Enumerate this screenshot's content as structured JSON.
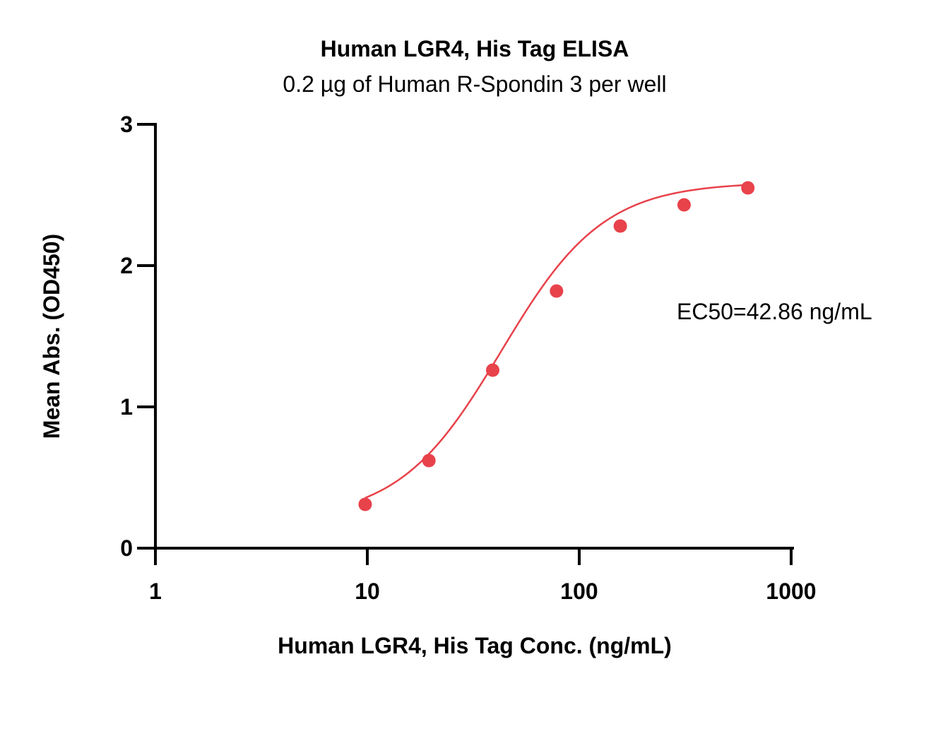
{
  "chart_data": {
    "type": "scatter",
    "title": "Human LGR4, His Tag ELISA",
    "subtitle": "0.2 µg of Human R-Spondin 3 per well",
    "xlabel": "Human LGR4, His Tag Conc. (ng/mL)",
    "ylabel": "Mean Abs. (OD450)",
    "xscale": "log10",
    "xlim": [
      1,
      1000
    ],
    "ylim": [
      0,
      3
    ],
    "x_ticks": [
      1,
      10,
      100,
      1000
    ],
    "x_tick_labels": [
      "1",
      "10",
      "100",
      "1000"
    ],
    "y_ticks": [
      0,
      1,
      2,
      3
    ],
    "y_tick_labels": [
      "0",
      "1",
      "2",
      "3"
    ],
    "grid": false,
    "series": [
      {
        "color": "#e8424b",
        "marker": "circle",
        "fit": "4PL sigmoidal curve",
        "x": [
          9.77,
          19.53,
          39.06,
          78.13,
          156.25,
          312.5,
          625
        ],
        "y": [
          0.31,
          0.62,
          1.26,
          1.82,
          2.28,
          2.43,
          2.55
        ]
      }
    ],
    "fit_curve": {
      "bottom": 0.2,
      "top": 2.59,
      "ec50": 42.86,
      "hill": 1.8
    },
    "annotations": [
      {
        "text": "EC50=42.86 ng/mL",
        "position": "right"
      }
    ]
  }
}
